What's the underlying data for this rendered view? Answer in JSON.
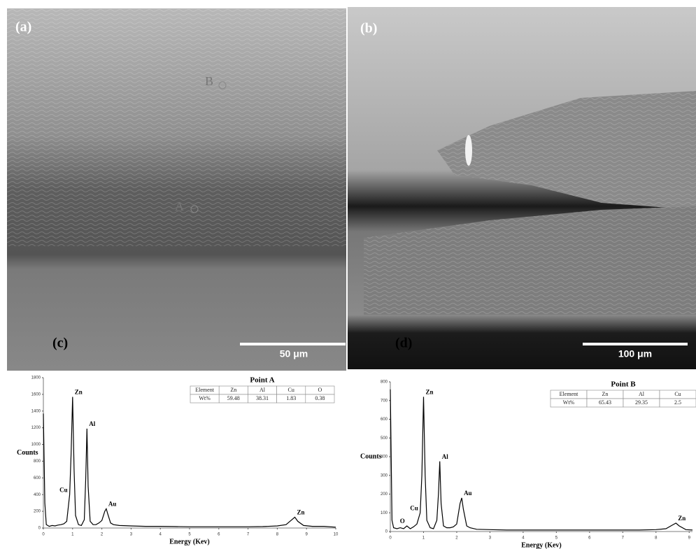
{
  "panels": [
    {
      "label": "(a)",
      "scale_bar": "50 μm",
      "points": [
        "B",
        "A"
      ]
    },
    {
      "label": "(b)",
      "scale_bar": "100 μm"
    }
  ],
  "chart_data": [
    {
      "type": "line",
      "label": "(c)",
      "title": "Point A",
      "xlabel": "Energy (Kev)",
      "ylabel": "Counts",
      "color": "#000000",
      "x": [
        0,
        0.05,
        0.1,
        0.2,
        0.3,
        0.4,
        0.5,
        0.6,
        0.7,
        0.8,
        0.9,
        0.95,
        1.0,
        1.05,
        1.1,
        1.2,
        1.3,
        1.4,
        1.45,
        1.49,
        1.53,
        1.6,
        1.7,
        1.8,
        1.9,
        2.0,
        2.1,
        2.15,
        2.2,
        2.3,
        2.4,
        2.6,
        3,
        3.5,
        4,
        4.5,
        5,
        5.5,
        6,
        6.5,
        7,
        7.5,
        8,
        8.3,
        8.5,
        8.6,
        8.7,
        8.9,
        9.2,
        9.6,
        10
      ],
      "values": [
        1370,
        300,
        40,
        20,
        30,
        25,
        35,
        40,
        50,
        80,
        400,
        900,
        1570,
        700,
        150,
        40,
        30,
        100,
        600,
        1190,
        500,
        80,
        40,
        40,
        60,
        90,
        200,
        230,
        170,
        60,
        40,
        30,
        25,
        20,
        20,
        18,
        15,
        15,
        15,
        15,
        15,
        18,
        25,
        40,
        100,
        130,
        80,
        30,
        20,
        20,
        10
      ],
      "xlim": [
        0,
        10
      ],
      "xticks": [
        0,
        1,
        2,
        3,
        4,
        5,
        6,
        7,
        8,
        9,
        10
      ],
      "ylim": [
        0,
        1800
      ],
      "yticks": [
        0,
        200,
        400,
        600,
        800,
        1000,
        1200,
        1400,
        1600,
        1800
      ],
      "peak_labels": [
        {
          "text": "Cu",
          "x": 0.9
        },
        {
          "text": "Zn",
          "x": 1.0
        },
        {
          "text": "Al",
          "x": 1.49
        },
        {
          "text": "Au",
          "x": 2.15
        },
        {
          "text": "Zn",
          "x": 8.6
        }
      ],
      "table": {
        "header": [
          "Element",
          "Zn",
          "Al",
          "Cu",
          "O"
        ],
        "rows": [
          [
            "Wt%",
            59.48,
            38.31,
            1.83,
            0.38
          ]
        ]
      }
    },
    {
      "type": "line",
      "label": "(d)",
      "title": "Point B",
      "xlabel": "Energy (Kev)",
      "ylabel": "Counts",
      "color": "#000000",
      "x": [
        0,
        0.05,
        0.1,
        0.2,
        0.3,
        0.4,
        0.5,
        0.6,
        0.7,
        0.8,
        0.9,
        0.95,
        1.0,
        1.05,
        1.1,
        1.2,
        1.3,
        1.4,
        1.45,
        1.49,
        1.53,
        1.6,
        1.7,
        1.8,
        1.9,
        2.0,
        2.1,
        2.15,
        2.2,
        2.3,
        2.4,
        2.6,
        3,
        3.5,
        4,
        4.5,
        5,
        5.5,
        6,
        6.5,
        7,
        7.5,
        8,
        8.3,
        8.5,
        8.6,
        8.7,
        8.9,
        9.1
      ],
      "values": [
        760,
        60,
        20,
        15,
        20,
        15,
        30,
        15,
        25,
        40,
        100,
        300,
        720,
        300,
        60,
        20,
        15,
        60,
        200,
        375,
        150,
        30,
        20,
        20,
        25,
        40,
        150,
        180,
        120,
        30,
        20,
        12,
        10,
        8,
        8,
        8,
        8,
        8,
        8,
        8,
        8,
        8,
        10,
        15,
        35,
        45,
        30,
        10,
        8
      ],
      "xlim": [
        0,
        9.1
      ],
      "xticks": [
        0,
        1,
        2,
        3,
        4,
        5,
        6,
        7,
        8,
        9
      ],
      "ylim": [
        0,
        800
      ],
      "yticks": [
        0,
        100,
        200,
        300,
        400,
        500,
        600,
        700,
        800
      ],
      "peak_labels": [
        {
          "text": "O",
          "x": 0.5
        },
        {
          "text": "Cu",
          "x": 0.9
        },
        {
          "text": "Zn",
          "x": 1.0
        },
        {
          "text": "Al",
          "x": 1.49
        },
        {
          "text": "Au",
          "x": 2.15
        },
        {
          "text": "Zn",
          "x": 8.6
        }
      ],
      "table": {
        "header": [
          "Element",
          "Zn",
          "Al",
          "Cu"
        ],
        "rows": [
          [
            "Wt%",
            65.43,
            29.35,
            2.5
          ]
        ]
      }
    }
  ]
}
